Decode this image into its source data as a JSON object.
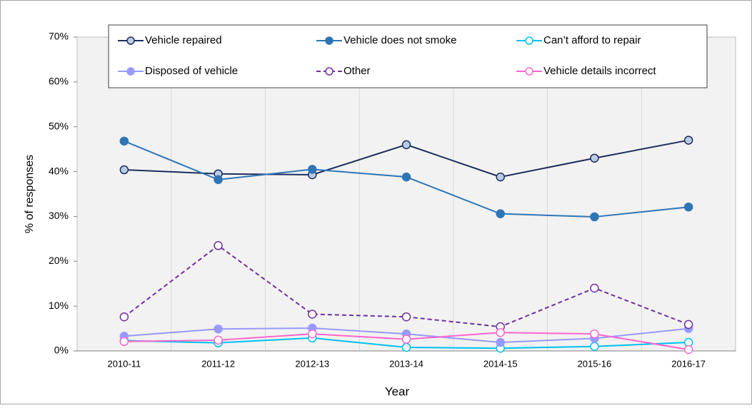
{
  "chart_data": {
    "type": "line",
    "x_label": "Year",
    "y_label": "% of responses",
    "categories": [
      "2010-11",
      "2011-12",
      "2012-13",
      "2013-14",
      "2014-15",
      "2015-16",
      "2016-17"
    ],
    "ylim": [
      0,
      70
    ],
    "yticks": [
      {
        "value": 0,
        "label": "0%"
      },
      {
        "value": 10,
        "label": "10%"
      },
      {
        "value": 20,
        "label": "20%"
      },
      {
        "value": 30,
        "label": "30%"
      },
      {
        "value": 40,
        "label": "40%"
      },
      {
        "value": 50,
        "label": "50%"
      },
      {
        "value": 60,
        "label": "60%"
      },
      {
        "value": 70,
        "label": "70%"
      }
    ],
    "grid": false,
    "legend": "top",
    "series": [
      {
        "name": "Vehicle repaired",
        "color": "#1f2d5c",
        "marker_fill": "#b8cce4",
        "dashed": false,
        "values": [
          40.4,
          39.5,
          39.3,
          46.0,
          38.8,
          43.0,
          47.0
        ]
      },
      {
        "name": "Vehicle does not smoke",
        "color": "#2e75b6",
        "marker_fill": "#2e75b6",
        "dashed": false,
        "values": [
          46.8,
          38.2,
          40.5,
          38.8,
          30.6,
          29.9,
          32.1
        ]
      },
      {
        "name": "Can’t afford to repair",
        "color": "#00c0f0",
        "marker_fill": "#ffffff",
        "dashed": false,
        "values": [
          2.3,
          1.8,
          2.9,
          0.8,
          0.6,
          1.0,
          1.9
        ]
      },
      {
        "name": "Disposed of vehicle",
        "color": "#9999ff",
        "marker_fill": "#9999ff",
        "dashed": false,
        "values": [
          3.3,
          4.9,
          5.1,
          3.8,
          1.9,
          2.8,
          5.0
        ]
      },
      {
        "name": "Other",
        "color": "#7030a0",
        "marker_fill": "#ffffff",
        "dashed": true,
        "values": [
          7.6,
          23.5,
          8.2,
          7.6,
          5.4,
          14.0,
          5.9
        ]
      },
      {
        "name": "Vehicle details incorrect",
        "color": "#ff66cc",
        "marker_fill": "#ffffff",
        "dashed": false,
        "values": [
          2.1,
          2.4,
          3.8,
          2.6,
          4.1,
          3.8,
          0.3
        ]
      }
    ]
  }
}
